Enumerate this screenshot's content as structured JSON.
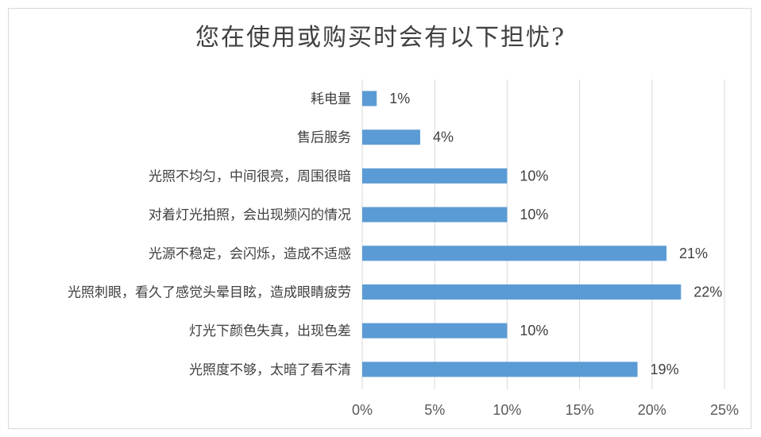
{
  "chart_data": {
    "type": "bar",
    "orientation": "horizontal",
    "title": "您在使用或购买时会有以下担忧?",
    "categories": [
      "耗电量",
      "售后服务",
      "光照不均匀，中间很亮，周围很暗",
      "对着灯光拍照，会出现频闪的情况",
      "光源不稳定，会闪烁，造成不适感",
      "光照刺眼，看久了感觉头晕目眩，造成眼睛疲劳",
      "灯光下颜色失真，出现色差",
      "光照度不够，太暗了看不清"
    ],
    "values": [
      1,
      4,
      10,
      10,
      21,
      22,
      10,
      19
    ],
    "value_labels": [
      "1%",
      "4%",
      "10%",
      "10%",
      "21%",
      "22%",
      "10%",
      "19%"
    ],
    "xlim": [
      0,
      25
    ],
    "xticks": [
      "0%",
      "5%",
      "10%",
      "15%",
      "20%",
      "25%"
    ],
    "grid": true,
    "bar_color": "#5b9bd5"
  }
}
